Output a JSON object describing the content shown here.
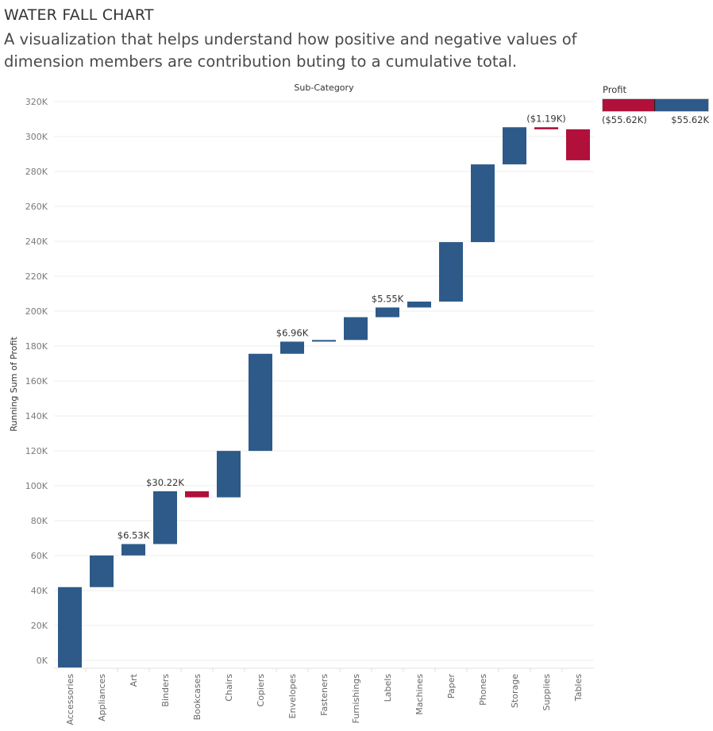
{
  "header": {
    "title": "WATER FALL CHART",
    "subtitle": "A visualization that helps understand how positive and negative values of dimension members are contribution buting to a cumulative total."
  },
  "legend": {
    "title": "Profit",
    "min_label": "($55.62K)",
    "max_label": "$55.62K"
  },
  "colors": {
    "positive": "#2d5a89",
    "negative": "#b0103a",
    "grid": "#ececec"
  },
  "chart_data": {
    "type": "waterfall",
    "title": "Sub-Category",
    "xlabel": "Sub-Category",
    "ylabel": "Running Sum of Profit",
    "ylim": [
      -5,
      320
    ],
    "yticks": [
      0,
      20,
      40,
      60,
      80,
      100,
      120,
      140,
      160,
      180,
      200,
      220,
      240,
      260,
      280,
      300,
      320
    ],
    "ytick_labels": [
      "0K",
      "20K",
      "40K",
      "60K",
      "80K",
      "100K",
      "120K",
      "140K",
      "160K",
      "180K",
      "200K",
      "220K",
      "240K",
      "260K",
      "280K",
      "300K",
      "320K"
    ],
    "categories": [
      "Accessories",
      "Appliances",
      "Art",
      "Binders",
      "Bookcases",
      "Chairs",
      "Copiers",
      "Envelopes",
      "Fasteners",
      "Furnishings",
      "Labels",
      "Machines",
      "Paper",
      "Phones",
      "Storage",
      "Supplies",
      "Tables"
    ],
    "profit_k": [
      41.94,
      18.14,
      6.53,
      30.22,
      -3.47,
      26.59,
      55.62,
      6.96,
      0.95,
      13.06,
      5.55,
      3.38,
      34.05,
      44.52,
      21.28,
      -1.19,
      -17.73
    ],
    "data_labels": [
      "",
      "",
      "$6.53K",
      "$30.22K",
      "",
      "",
      "",
      "$6.96K",
      "",
      "",
      "$5.55K",
      "",
      "",
      "",
      "",
      "($1.19K)",
      ""
    ]
  }
}
